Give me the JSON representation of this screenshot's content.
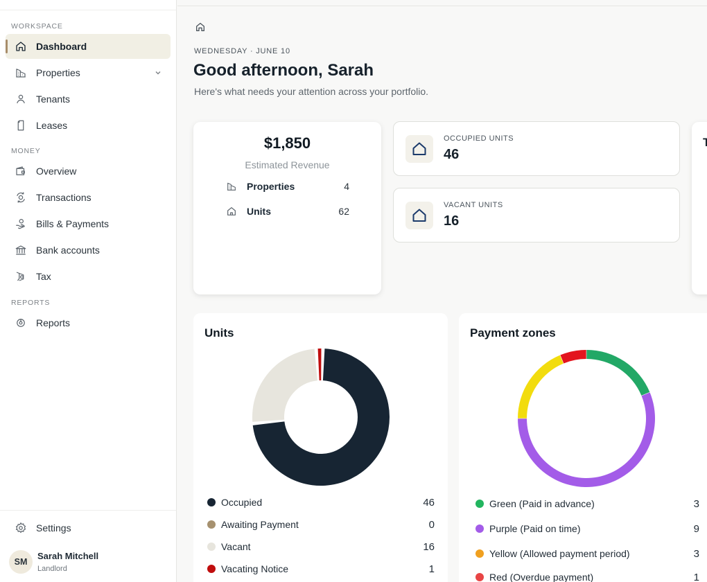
{
  "sidebar": {
    "workspace_label": "WORKSPACE",
    "money_label": "MONEY",
    "reports_label": "REPORTS",
    "items": {
      "dashboard": "Dashboard",
      "properties": "Properties",
      "tenants": "Tenants",
      "leases": "Leases",
      "overview": "Overview",
      "transactions": "Transactions",
      "bills": "Bills & Payments",
      "bank": "Bank accounts",
      "tax": "Tax",
      "reports": "Reports",
      "settings": "Settings"
    },
    "user": {
      "initials": "SM",
      "name": "Sarah Mitchell",
      "role": "Landlord"
    }
  },
  "header": {
    "date": "WEDNESDAY · JUNE 10",
    "greeting": "Good afternoon, Sarah",
    "subtitle": "Here's what needs your attention across your portfolio."
  },
  "revenue_card": {
    "amount": "$1,850",
    "label": "Estimated Revenue",
    "rows": [
      {
        "label": "Properties",
        "value": "4"
      },
      {
        "label": "Units",
        "value": "62"
      }
    ]
  },
  "occupied_card": {
    "label": "OCCUPIED UNITS",
    "value": "46"
  },
  "vacant_card": {
    "label": "VACANT UNITS",
    "value": "16"
  },
  "cut_card": {
    "letter": "T"
  },
  "units_chart": {
    "title": "Units",
    "legend": [
      {
        "label": "Occupied",
        "value": "46",
        "color": "#172533"
      },
      {
        "label": "Awaiting Payment",
        "value": "0",
        "color": "#a6916f"
      },
      {
        "label": "Vacant",
        "value": "16",
        "color": "#e7e5dd"
      },
      {
        "label": "Vacating Notice",
        "value": "1",
        "color": "#c00d0d"
      }
    ]
  },
  "zones_chart": {
    "title": "Payment zones",
    "legend": [
      {
        "label": "Green (Paid in advance)",
        "value": "3",
        "color": "#22b55f"
      },
      {
        "label": "Purple (Paid on time)",
        "value": "9",
        "color": "#a35ce8"
      },
      {
        "label": "Yellow (Allowed payment period)",
        "value": "3",
        "color": "#f0a020"
      },
      {
        "label": "Red (Overdue payment)",
        "value": "1",
        "color": "#e84545"
      }
    ]
  },
  "chart_data": [
    {
      "type": "pie",
      "title": "Units",
      "categories": [
        "Occupied",
        "Awaiting Payment",
        "Vacant",
        "Vacating Notice"
      ],
      "values": [
        46,
        0,
        16,
        1
      ],
      "colors": [
        "#172533",
        "#a6916f",
        "#e7e5dd",
        "#c00d0d"
      ]
    },
    {
      "type": "pie",
      "title": "Payment zones",
      "categories": [
        "Green (Paid in advance)",
        "Purple (Paid on time)",
        "Yellow (Allowed payment period)",
        "Red (Overdue payment)"
      ],
      "values": [
        3,
        9,
        3,
        1
      ],
      "colors": [
        "#22a866",
        "#a35ce8",
        "#f2dc0e",
        "#e3141e"
      ]
    }
  ]
}
